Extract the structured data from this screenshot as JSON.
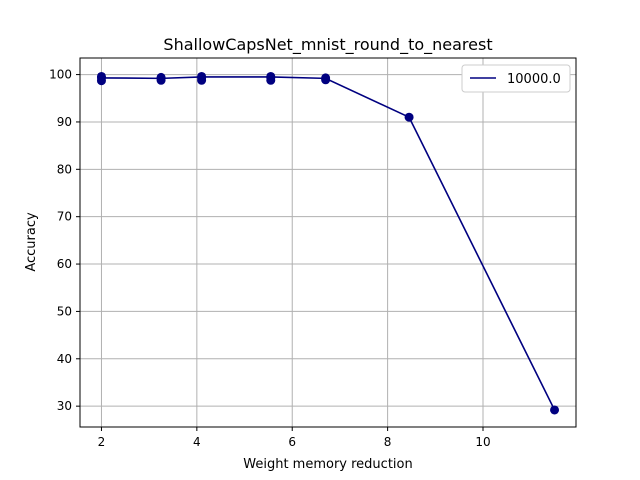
{
  "chart_data": {
    "type": "line",
    "title": "ShallowCapsNet_mnist_round_to_nearest",
    "xlabel": "Weight memory reduction",
    "ylabel": "Accuracy",
    "xlim": [
      1.55,
      11.95
    ],
    "ylim": [
      25.6,
      103.5
    ],
    "xticks": [
      2,
      4,
      6,
      8,
      10
    ],
    "yticks": [
      30,
      40,
      50,
      60,
      70,
      80,
      90,
      100
    ],
    "grid": true,
    "legend_position": "top-right",
    "series": [
      {
        "name": "10000.0",
        "color": "#000080",
        "line": {
          "x": [
            2.0,
            3.25,
            4.1,
            5.55,
            6.7,
            8.45,
            11.5
          ],
          "y": [
            99.3,
            99.2,
            99.5,
            99.5,
            99.2,
            91.0,
            29.2
          ]
        },
        "points": {
          "x": [
            2.0,
            2.0,
            2.0,
            3.25,
            3.25,
            3.25,
            4.1,
            4.1,
            4.1,
            5.55,
            5.55,
            5.55,
            6.7,
            6.7,
            8.45,
            11.5
          ],
          "y": [
            98.7,
            99.3,
            99.6,
            98.8,
            99.2,
            99.4,
            98.8,
            99.3,
            99.6,
            98.8,
            99.3,
            99.6,
            98.9,
            99.3,
            91.0,
            29.2
          ]
        }
      }
    ]
  }
}
